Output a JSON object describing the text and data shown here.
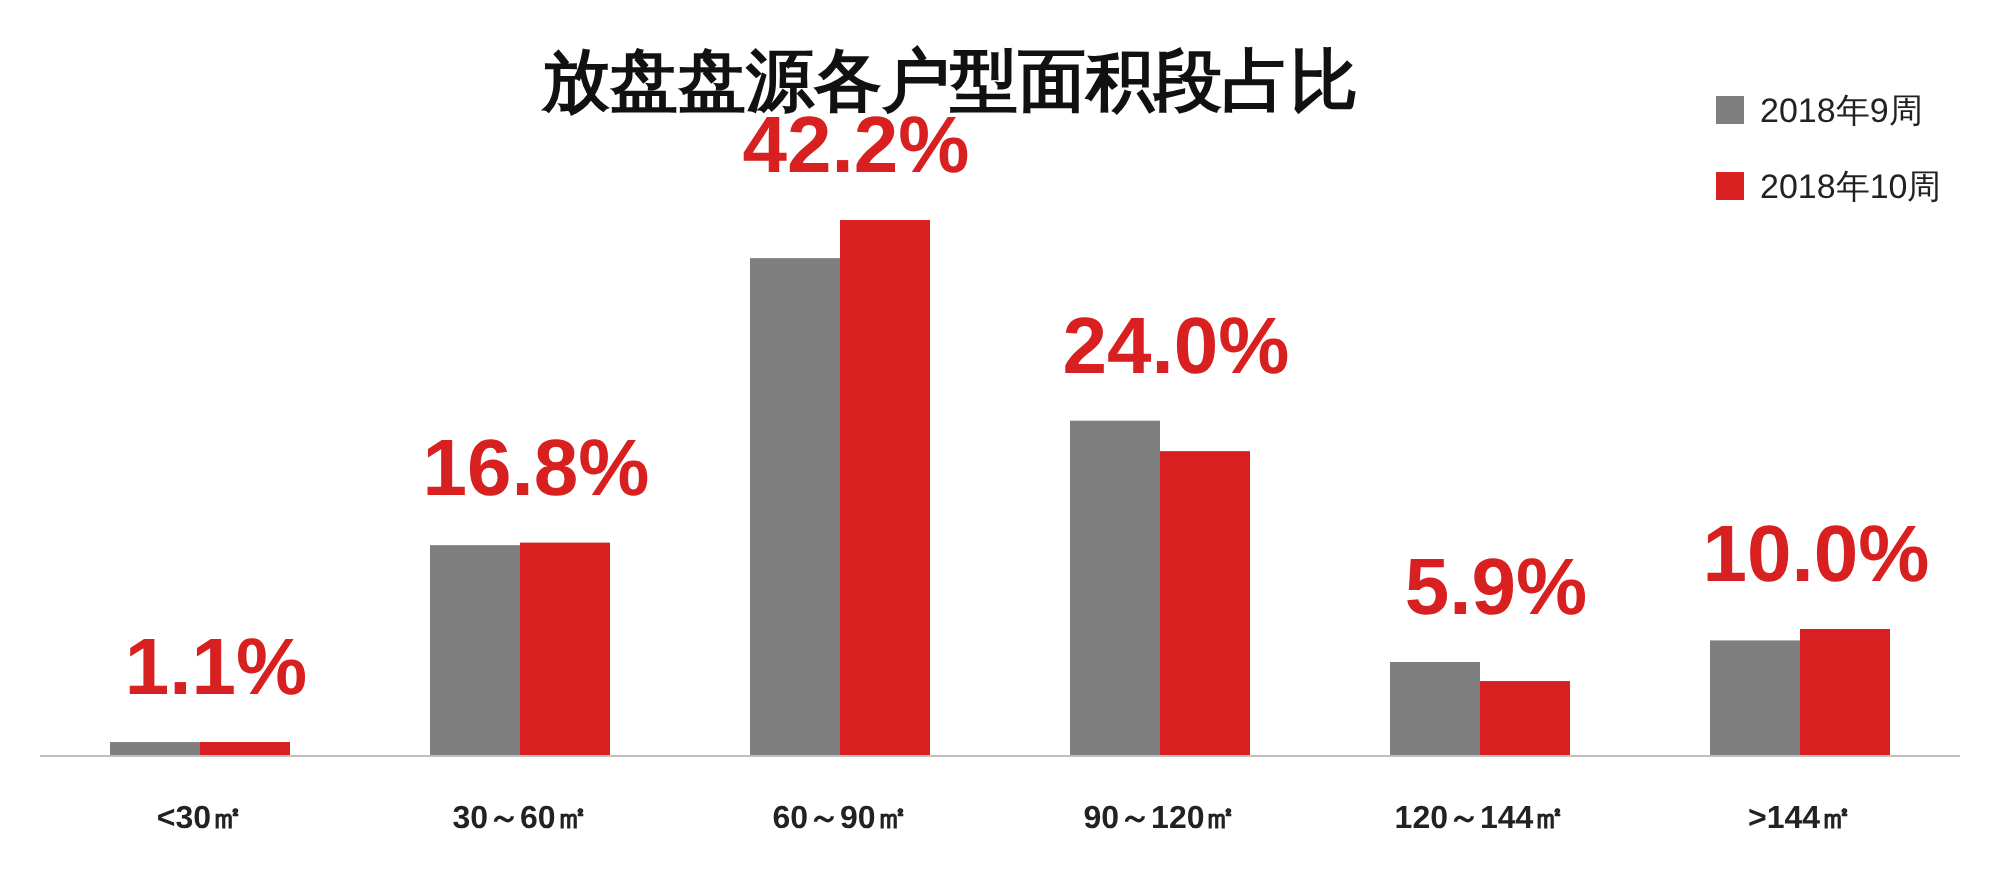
{
  "chart_data": {
    "type": "bar",
    "title": "放盘盘源各户型面积段占比",
    "categories": [
      "<30㎡",
      "30～60㎡",
      "60～90㎡",
      "90～120㎡",
      "120～144㎡",
      ">144㎡"
    ],
    "series": [
      {
        "name": "2018年9周",
        "color": "#7f7f7f",
        "values": [
          1.1,
          16.6,
          39.2,
          26.4,
          7.4,
          9.1
        ]
      },
      {
        "name": "2018年10周",
        "color": "#d7201f",
        "values": [
          1.1,
          16.8,
          42.2,
          24.0,
          5.9,
          10.0
        ],
        "value_labels": [
          "1.1%",
          "16.8%",
          "42.2%",
          "24.0%",
          "5.9%",
          "10.0%"
        ]
      }
    ],
    "legend": "top right",
    "grid": false
  }
}
